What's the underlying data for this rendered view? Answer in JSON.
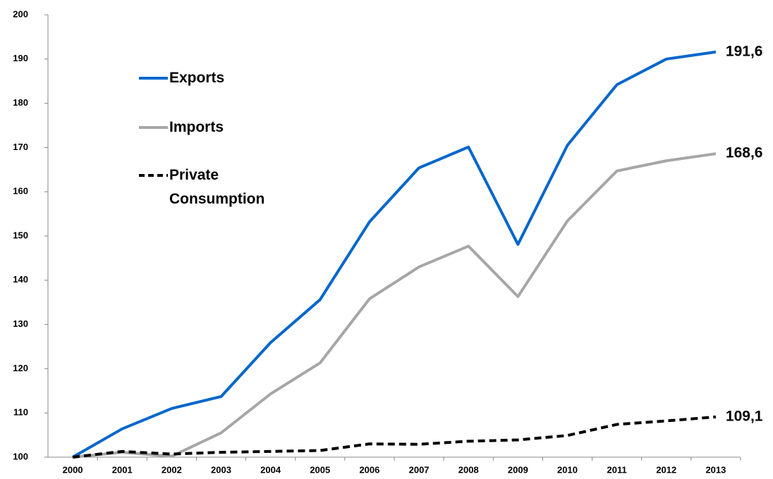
{
  "chart_data": {
    "type": "line",
    "categories": [
      "2000",
      "2001",
      "2002",
      "2003",
      "2004",
      "2005",
      "2006",
      "2007",
      "2008",
      "2009",
      "2010",
      "2011",
      "2012",
      "2013"
    ],
    "ylim": [
      100,
      200
    ],
    "yticks": [
      100,
      110,
      120,
      130,
      140,
      150,
      160,
      170,
      180,
      190,
      200
    ],
    "series": [
      {
        "name": "Exports",
        "color": "#0066cc",
        "dash": false,
        "values": [
          100,
          106.4,
          111,
          113.7,
          125.9,
          135.6,
          153.2,
          165.4,
          170.1,
          148.1,
          170.5,
          184.2,
          190,
          191.6
        ],
        "end_label": "191,6"
      },
      {
        "name": "Imports",
        "color": "#a6a6a6",
        "dash": false,
        "values": [
          100,
          101.1,
          100.2,
          105.5,
          114.3,
          121.3,
          135.8,
          143,
          147.7,
          136.3,
          153.4,
          164.7,
          167,
          168.6
        ],
        "end_label": "168,6"
      },
      {
        "name": "Private Consumption",
        "color": "#000000",
        "dash": true,
        "values": [
          100,
          101.3,
          100.7,
          101.1,
          101.3,
          101.5,
          103,
          102.9,
          103.6,
          103.9,
          104.9,
          107.4,
          108.2,
          109.1
        ],
        "end_label": "109,1"
      }
    ]
  }
}
